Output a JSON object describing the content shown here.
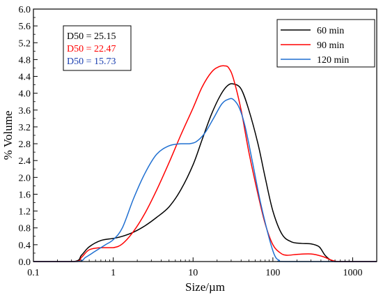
{
  "chart_data": {
    "type": "line",
    "xlabel": "Size/µm",
    "ylabel": "% Volume",
    "x_scale": "log",
    "xlim": [
      0.1,
      2000
    ],
    "ylim": [
      0,
      6.0
    ],
    "x_ticks": [
      {
        "value": 0.1,
        "label": "0.1"
      },
      {
        "value": 1,
        "label": "1"
      },
      {
        "value": 10,
        "label": "10"
      },
      {
        "value": 100,
        "label": "100"
      },
      {
        "value": 1000,
        "label": "1000"
      }
    ],
    "y_ticks": [
      "0.0",
      "0.4",
      "0.8",
      "1.2",
      "1.6",
      "2.0",
      "2.4",
      "2.8",
      "3.2",
      "3.6",
      "4.0",
      "4.4",
      "4.8",
      "5.2",
      "5.6",
      "6.0"
    ],
    "legend_position": "top-right",
    "annotations": [
      {
        "text": "D50 = 25.15",
        "color": "#000000"
      },
      {
        "text": "D50 = 22.47",
        "color": "#ff0000"
      },
      {
        "text": "D50 = 15.73",
        "color": "#1a3fb0"
      }
    ],
    "series": [
      {
        "name": "60 min",
        "color": "#000000",
        "x": [
          0.1,
          0.32,
          0.4,
          0.5,
          0.7,
          1.0,
          1.3,
          1.8,
          2.5,
          3.5,
          5,
          7,
          10,
          13,
          17,
          22,
          27,
          32,
          40,
          50,
          65,
          80,
          100,
          130,
          170,
          230,
          300,
          380,
          450,
          550,
          700,
          2000
        ],
        "y": [
          0.0,
          0.0,
          0.15,
          0.35,
          0.5,
          0.55,
          0.6,
          0.7,
          0.85,
          1.05,
          1.3,
          1.7,
          2.3,
          2.9,
          3.5,
          3.95,
          4.18,
          4.22,
          4.1,
          3.6,
          2.8,
          2.0,
          1.2,
          0.65,
          0.47,
          0.43,
          0.42,
          0.35,
          0.15,
          0.02,
          0.0,
          0.0
        ]
      },
      {
        "name": "90 min",
        "color": "#ff0000",
        "x": [
          0.1,
          0.33,
          0.4,
          0.5,
          0.7,
          1.0,
          1.3,
          1.8,
          2.5,
          3.5,
          5,
          7,
          10,
          13,
          17,
          21,
          25,
          28,
          32,
          40,
          50,
          65,
          80,
          100,
          125,
          150,
          200,
          300,
          420,
          550,
          700,
          2000
        ],
        "y": [
          0.0,
          0.0,
          0.1,
          0.28,
          0.33,
          0.33,
          0.42,
          0.72,
          1.15,
          1.7,
          2.35,
          3.0,
          3.65,
          4.15,
          4.5,
          4.63,
          4.65,
          4.6,
          4.35,
          3.6,
          2.6,
          1.6,
          0.9,
          0.4,
          0.2,
          0.15,
          0.17,
          0.18,
          0.12,
          0.03,
          0.0,
          0.0
        ]
      },
      {
        "name": "120 min",
        "color": "#1f6fd1",
        "x": [
          0.1,
          0.35,
          0.45,
          0.6,
          0.8,
          1.0,
          1.3,
          1.8,
          2.5,
          3.5,
          5,
          7,
          9,
          11,
          14,
          18,
          23,
          28,
          32,
          38,
          45,
          55,
          70,
          90,
          105,
          120,
          150,
          2000
        ],
        "y": [
          0.0,
          0.0,
          0.1,
          0.25,
          0.4,
          0.52,
          0.8,
          1.5,
          2.1,
          2.55,
          2.75,
          2.8,
          2.8,
          2.85,
          3.05,
          3.4,
          3.75,
          3.86,
          3.85,
          3.65,
          3.2,
          2.4,
          1.4,
          0.55,
          0.15,
          0.03,
          0.0,
          0.0
        ]
      }
    ]
  }
}
